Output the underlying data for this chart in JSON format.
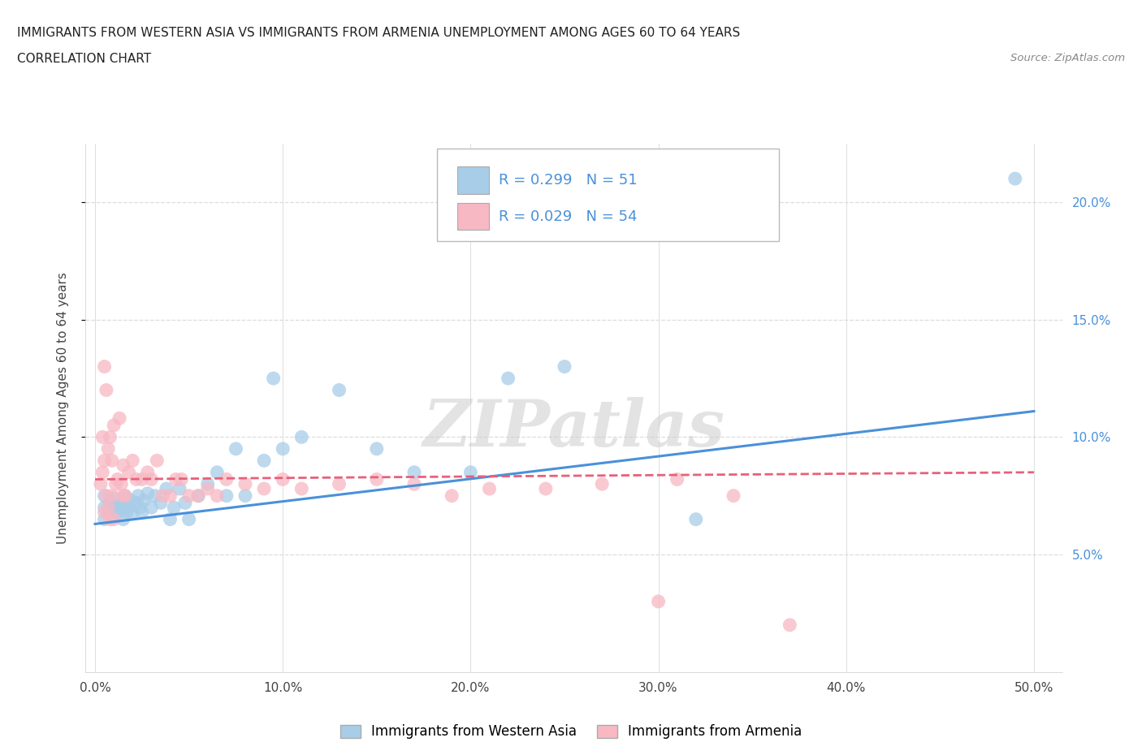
{
  "title_line1": "IMMIGRANTS FROM WESTERN ASIA VS IMMIGRANTS FROM ARMENIA UNEMPLOYMENT AMONG AGES 60 TO 64 YEARS",
  "title_line2": "CORRELATION CHART",
  "source_text": "Source: ZipAtlas.com",
  "ylabel": "Unemployment Among Ages 60 to 64 years",
  "x_ticks": [
    0.0,
    0.1,
    0.2,
    0.3,
    0.4,
    0.5
  ],
  "x_tick_labels": [
    "0.0%",
    "10.0%",
    "20.0%",
    "30.0%",
    "40.0%",
    "50.0%"
  ],
  "y_ticks": [
    0.05,
    0.1,
    0.15,
    0.2
  ],
  "y_tick_labels": [
    "5.0%",
    "10.0%",
    "15.0%",
    "20.0%"
  ],
  "xlim": [
    -0.005,
    0.515
  ],
  "ylim": [
    0.0,
    0.225
  ],
  "watermark": "ZIPatlas",
  "legend_R1": "R = 0.299",
  "legend_N1": "N = 51",
  "legend_R2": "R = 0.029",
  "legend_N2": "N = 54",
  "color_blue": "#A8CDE8",
  "color_pink": "#F7B8C4",
  "color_blue_line": "#4A90D9",
  "color_pink_line": "#E8607A",
  "color_label": "#4A90D9",
  "blue_scatter_x": [
    0.005,
    0.005,
    0.005,
    0.008,
    0.008,
    0.01,
    0.01,
    0.01,
    0.012,
    0.013,
    0.014,
    0.015,
    0.015,
    0.016,
    0.017,
    0.018,
    0.019,
    0.02,
    0.022,
    0.023,
    0.024,
    0.025,
    0.026,
    0.028,
    0.03,
    0.032,
    0.035,
    0.038,
    0.04,
    0.042,
    0.045,
    0.048,
    0.05,
    0.055,
    0.06,
    0.065,
    0.07,
    0.075,
    0.08,
    0.09,
    0.095,
    0.1,
    0.11,
    0.13,
    0.15,
    0.17,
    0.2,
    0.22,
    0.25,
    0.32,
    0.49
  ],
  "blue_scatter_y": [
    0.065,
    0.07,
    0.075,
    0.068,
    0.072,
    0.066,
    0.07,
    0.074,
    0.068,
    0.07,
    0.072,
    0.065,
    0.07,
    0.075,
    0.068,
    0.07,
    0.073,
    0.068,
    0.072,
    0.075,
    0.07,
    0.068,
    0.073,
    0.076,
    0.07,
    0.075,
    0.072,
    0.078,
    0.065,
    0.07,
    0.078,
    0.072,
    0.065,
    0.075,
    0.08,
    0.085,
    0.075,
    0.095,
    0.075,
    0.09,
    0.125,
    0.095,
    0.1,
    0.12,
    0.095,
    0.085,
    0.085,
    0.125,
    0.13,
    0.065,
    0.21
  ],
  "pink_scatter_x": [
    0.003,
    0.004,
    0.004,
    0.005,
    0.005,
    0.005,
    0.006,
    0.006,
    0.007,
    0.007,
    0.008,
    0.008,
    0.009,
    0.009,
    0.01,
    0.01,
    0.011,
    0.012,
    0.013,
    0.014,
    0.015,
    0.015,
    0.016,
    0.018,
    0.02,
    0.022,
    0.025,
    0.028,
    0.03,
    0.033,
    0.036,
    0.04,
    0.043,
    0.046,
    0.05,
    0.055,
    0.06,
    0.065,
    0.07,
    0.08,
    0.09,
    0.1,
    0.11,
    0.13,
    0.15,
    0.17,
    0.19,
    0.21,
    0.24,
    0.27,
    0.3,
    0.31,
    0.34,
    0.37
  ],
  "pink_scatter_y": [
    0.08,
    0.085,
    0.1,
    0.068,
    0.09,
    0.13,
    0.075,
    0.12,
    0.07,
    0.095,
    0.065,
    0.1,
    0.075,
    0.09,
    0.065,
    0.105,
    0.08,
    0.082,
    0.108,
    0.08,
    0.075,
    0.088,
    0.075,
    0.085,
    0.09,
    0.082,
    0.082,
    0.085,
    0.082,
    0.09,
    0.075,
    0.075,
    0.082,
    0.082,
    0.075,
    0.075,
    0.078,
    0.075,
    0.082,
    0.08,
    0.078,
    0.082,
    0.078,
    0.08,
    0.082,
    0.08,
    0.075,
    0.078,
    0.078,
    0.08,
    0.03,
    0.082,
    0.075,
    0.02
  ],
  "blue_trend_x": [
    0.0,
    0.5
  ],
  "blue_trend_y": [
    0.063,
    0.111
  ],
  "pink_trend_x": [
    0.0,
    0.5
  ],
  "pink_trend_y": [
    0.082,
    0.085
  ],
  "grid_color": "#DDDDDD",
  "background_color": "#FFFFFF",
  "legend_label_blue": "Immigrants from Western Asia",
  "legend_label_pink": "Immigrants from Armenia"
}
